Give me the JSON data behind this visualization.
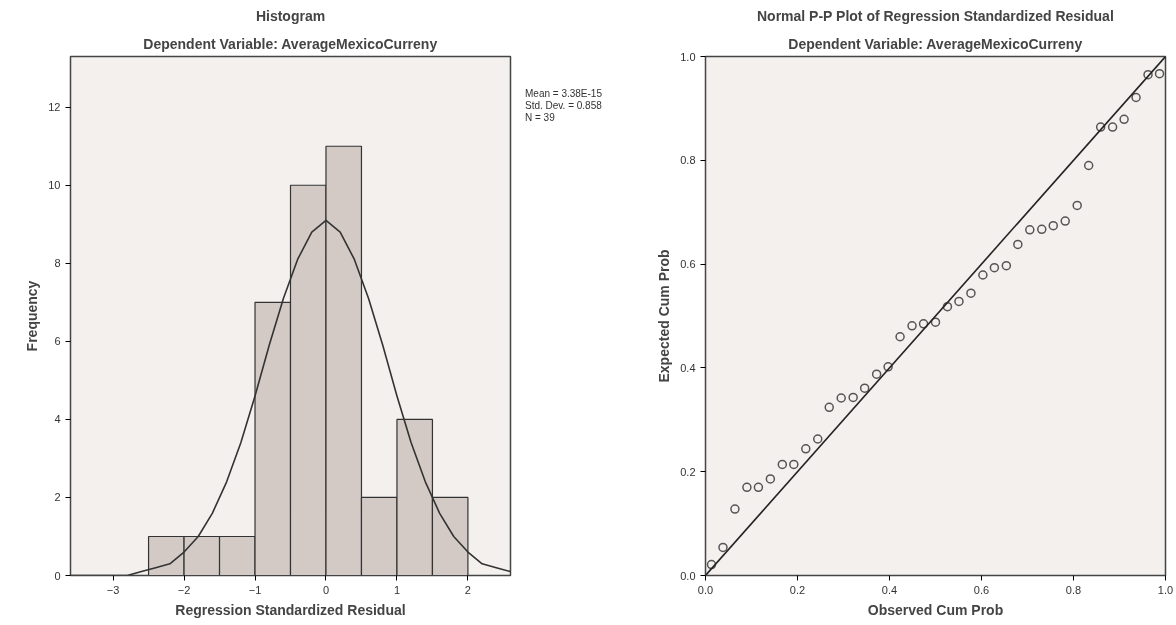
{
  "chart_data": [
    {
      "type": "histogram",
      "title": "Histogram",
      "subtitle": "Dependent Variable: AverageMexicoCurreny",
      "xlabel": "Regression Standardized Residual",
      "ylabel": "Frequency",
      "bins": [
        -2.5,
        -2.0,
        -1.5,
        -1.0,
        -0.5,
        0.0,
        0.5,
        1.0,
        1.5,
        2.0
      ],
      "series": [
        {
          "color": "#d3cac6",
          "values": [
            1,
            1,
            1,
            7,
            10,
            11,
            2,
            4,
            2
          ]
        },
        {
          "type": "line",
          "color": "#333333",
          "x": [
            -3.6,
            -3.2,
            -3.0,
            -2.8,
            -2.6,
            -2.4,
            -2.2,
            -2.0,
            -1.8,
            -1.6,
            -1.4,
            -1.2,
            -1.0,
            -0.8,
            -0.6,
            -0.4,
            -0.2,
            0,
            0.2,
            0.4,
            0.6,
            0.8,
            1.0,
            1.2,
            1.4,
            1.6,
            1.8,
            2.0,
            2.2,
            2.4,
            2.6
          ],
          "values": [
            0,
            0,
            0,
            0,
            0.1,
            0.2,
            0.3,
            0.6,
            1.0,
            1.6,
            2.4,
            3.4,
            4.6,
            5.9,
            7.1,
            8.1,
            8.8,
            9.1,
            8.8,
            8.1,
            7.1,
            5.9,
            4.6,
            3.4,
            2.4,
            1.6,
            1.0,
            0.6,
            0.3,
            0.2,
            0.1
          ]
        }
      ],
      "xlim": [
        -3.6,
        2.6
      ],
      "ylim": [
        0,
        13.3
      ],
      "xticks": [
        -3,
        -2,
        -1,
        0,
        1,
        2
      ],
      "yticks": [
        0,
        2,
        4,
        6,
        8,
        10,
        12
      ],
      "grid": false,
      "annotations": [
        "Mean = 3.38E-15",
        "Std. Dev. = 0.858",
        "N = 39"
      ]
    },
    {
      "type": "scatter",
      "title": "Normal P-P Plot of Regression Standardized Residual",
      "subtitle": "Dependent Variable: AverageMexicoCurreny",
      "xlabel": "Observed Cum Prob",
      "ylabel": "Expected Cum Prob",
      "grid": false,
      "series": [
        {
          "marker": "circle",
          "color": "#555555",
          "x": [
            0.013,
            0.038,
            0.064,
            0.09,
            0.115,
            0.141,
            0.167,
            0.192,
            0.218,
            0.244,
            0.269,
            0.295,
            0.321,
            0.346,
            0.372,
            0.397,
            0.423,
            0.449,
            0.474,
            0.5,
            0.526,
            0.551,
            0.577,
            0.603,
            0.628,
            0.654,
            0.679,
            0.705,
            0.731,
            0.756,
            0.782,
            0.808,
            0.833,
            0.859,
            0.885,
            0.91,
            0.936,
            0.962,
            0.987
          ],
          "values": [
            0.021,
            0.054,
            0.128,
            0.17,
            0.17,
            0.186,
            0.214,
            0.214,
            0.244,
            0.263,
            0.324,
            0.342,
            0.343,
            0.361,
            0.388,
            0.402,
            0.46,
            0.481,
            0.485,
            0.488,
            0.518,
            0.528,
            0.544,
            0.579,
            0.593,
            0.597,
            0.638,
            0.666,
            0.667,
            0.674,
            0.683,
            0.713,
            0.79,
            0.864,
            0.864,
            0.879,
            0.921,
            0.965,
            0.967
          ]
        },
        {
          "type": "line",
          "color": "#222222",
          "x": [
            0,
            1
          ],
          "values": [
            0,
            1
          ]
        }
      ],
      "xlim": [
        0,
        1
      ],
      "ylim": [
        0,
        1
      ],
      "xticks": [
        {
          "value": 0,
          "label": "0.0"
        },
        0.2,
        0.4,
        0.6,
        0.8,
        {
          "value": 1,
          "label": "1.0"
        }
      ],
      "yticks": [
        {
          "value": 0,
          "label": "0.0"
        },
        0.2,
        0.4,
        0.6,
        0.8,
        {
          "value": 1,
          "label": "1.0"
        }
      ]
    }
  ]
}
